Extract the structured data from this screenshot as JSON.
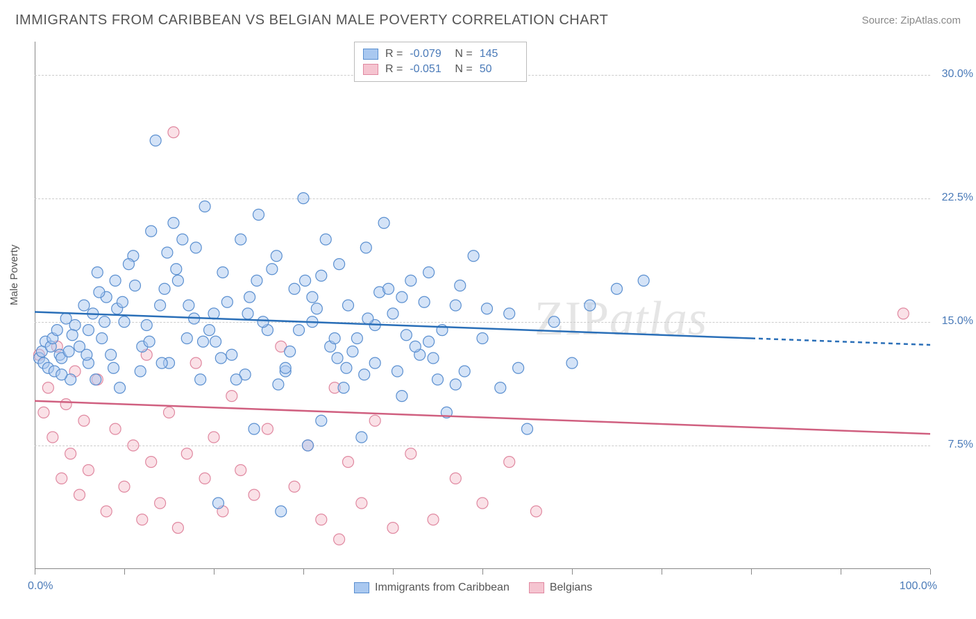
{
  "header": {
    "title": "IMMIGRANTS FROM CARIBBEAN VS BELGIAN MALE POVERTY CORRELATION CHART",
    "source": "Source: ZipAtlas.com"
  },
  "chart": {
    "type": "scatter",
    "ylabel": "Male Poverty",
    "watermark_1": "ZIP",
    "watermark_2": "atlas",
    "xlim": [
      0,
      100
    ],
    "ylim": [
      0,
      32
    ],
    "yticks": [
      {
        "value": 7.5,
        "label": "7.5%"
      },
      {
        "value": 15.0,
        "label": "15.0%"
      },
      {
        "value": 22.5,
        "label": "22.5%"
      },
      {
        "value": 30.0,
        "label": "30.0%"
      }
    ],
    "xticks": [
      0,
      10,
      20,
      30,
      40,
      50,
      60,
      70,
      80,
      90,
      100
    ],
    "xtick_labels": [
      {
        "value": 0,
        "label": "0.0%"
      },
      {
        "value": 100,
        "label": "100.0%"
      }
    ],
    "marker_radius": 8,
    "marker_opacity": 0.5,
    "series_a": {
      "name": "Immigrants from Caribbean",
      "color_fill": "#a9c8f0",
      "color_stroke": "#5a8fd0",
      "R": "-0.079",
      "N": "145",
      "trend": {
        "y_start": 15.6,
        "y_end": 13.6,
        "x_solid_end": 80,
        "color": "#2a6fb8",
        "width": 2.5
      },
      "points": [
        [
          0.5,
          12.8
        ],
        [
          0.8,
          13.2
        ],
        [
          1.0,
          12.5
        ],
        [
          1.2,
          13.8
        ],
        [
          1.5,
          12.2
        ],
        [
          1.8,
          13.5
        ],
        [
          2.0,
          14.0
        ],
        [
          2.2,
          12.0
        ],
        [
          2.5,
          14.5
        ],
        [
          2.8,
          13.0
        ],
        [
          3.0,
          12.8
        ],
        [
          3.5,
          15.2
        ],
        [
          4.0,
          11.5
        ],
        [
          4.5,
          14.8
        ],
        [
          5.0,
          13.5
        ],
        [
          5.5,
          16.0
        ],
        [
          6.0,
          12.5
        ],
        [
          6.5,
          15.5
        ],
        [
          7.0,
          18.0
        ],
        [
          7.5,
          14.0
        ],
        [
          8.0,
          16.5
        ],
        [
          8.5,
          13.0
        ],
        [
          9.0,
          17.5
        ],
        [
          9.5,
          11.0
        ],
        [
          10.0,
          15.0
        ],
        [
          11.0,
          19.0
        ],
        [
          12.0,
          13.5
        ],
        [
          13.0,
          20.5
        ],
        [
          13.5,
          26.0
        ],
        [
          14.0,
          16.0
        ],
        [
          15.0,
          12.5
        ],
        [
          15.5,
          21.0
        ],
        [
          16.0,
          17.5
        ],
        [
          17.0,
          14.0
        ],
        [
          18.0,
          19.5
        ],
        [
          18.5,
          11.5
        ],
        [
          19.0,
          22.0
        ],
        [
          20.0,
          15.5
        ],
        [
          20.5,
          4.0
        ],
        [
          21.0,
          18.0
        ],
        [
          22.0,
          13.0
        ],
        [
          23.0,
          20.0
        ],
        [
          24.0,
          16.5
        ],
        [
          24.5,
          8.5
        ],
        [
          25.0,
          21.5
        ],
        [
          26.0,
          14.5
        ],
        [
          27.0,
          19.0
        ],
        [
          27.5,
          3.5
        ],
        [
          28.0,
          12.0
        ],
        [
          29.0,
          17.0
        ],
        [
          30.0,
          22.5
        ],
        [
          30.5,
          7.5
        ],
        [
          31.0,
          15.0
        ],
        [
          32.0,
          9.0
        ],
        [
          32.5,
          20.0
        ],
        [
          33.0,
          13.5
        ],
        [
          34.0,
          18.5
        ],
        [
          34.5,
          11.0
        ],
        [
          35.0,
          16.0
        ],
        [
          36.0,
          14.0
        ],
        [
          36.5,
          8.0
        ],
        [
          37.0,
          19.5
        ],
        [
          38.0,
          12.5
        ],
        [
          39.0,
          21.0
        ],
        [
          40.0,
          15.5
        ],
        [
          41.0,
          10.5
        ],
        [
          42.0,
          17.5
        ],
        [
          43.0,
          13.0
        ],
        [
          44.0,
          18.0
        ],
        [
          45.0,
          11.5
        ],
        [
          45.5,
          14.5
        ],
        [
          46.0,
          9.5
        ],
        [
          47.0,
          16.0
        ],
        [
          48.0,
          12.0
        ],
        [
          49.0,
          19.0
        ],
        [
          50.0,
          14.0
        ],
        [
          52.0,
          11.0
        ],
        [
          53.0,
          15.5
        ],
        [
          55.0,
          8.5
        ],
        [
          58.0,
          15.0
        ],
        [
          60.0,
          12.5
        ],
        [
          62.0,
          16.0
        ],
        [
          65.0,
          17.0
        ],
        [
          68.0,
          17.5
        ],
        [
          3.0,
          11.8
        ],
        [
          4.2,
          14.2
        ],
        [
          5.8,
          13.0
        ],
        [
          7.2,
          16.8
        ],
        [
          8.8,
          12.2
        ],
        [
          10.5,
          18.5
        ],
        [
          12.5,
          14.8
        ],
        [
          14.5,
          17.0
        ],
        [
          16.5,
          20.0
        ],
        [
          18.8,
          13.8
        ],
        [
          21.5,
          16.2
        ],
        [
          23.5,
          11.8
        ],
        [
          26.5,
          18.2
        ],
        [
          29.5,
          14.5
        ],
        [
          32.0,
          17.8
        ],
        [
          35.5,
          13.2
        ],
        [
          38.5,
          16.8
        ],
        [
          41.5,
          14.2
        ],
        [
          44.5,
          12.8
        ],
        [
          47.5,
          17.2
        ],
        [
          6.0,
          14.5
        ],
        [
          9.2,
          15.8
        ],
        [
          11.8,
          12.0
        ],
        [
          14.8,
          19.2
        ],
        [
          17.8,
          15.2
        ],
        [
          20.8,
          12.8
        ],
        [
          24.8,
          17.5
        ],
        [
          28.5,
          13.2
        ],
        [
          31.5,
          15.8
        ],
        [
          34.8,
          12.2
        ],
        [
          38.0,
          14.8
        ],
        [
          41.0,
          16.5
        ],
        [
          44.0,
          13.8
        ],
        [
          47.0,
          11.2
        ],
        [
          50.5,
          15.8
        ],
        [
          54.0,
          12.2
        ],
        [
          3.8,
          13.2
        ],
        [
          6.8,
          11.5
        ],
        [
          9.8,
          16.2
        ],
        [
          12.8,
          13.8
        ],
        [
          15.8,
          18.2
        ],
        [
          19.5,
          14.5
        ],
        [
          22.5,
          11.5
        ],
        [
          25.5,
          15.0
        ],
        [
          28.0,
          12.2
        ],
        [
          31.0,
          16.5
        ],
        [
          33.5,
          14.0
        ],
        [
          36.8,
          11.8
        ],
        [
          39.5,
          17.0
        ],
        [
          42.5,
          13.5
        ],
        [
          7.8,
          15.0
        ],
        [
          11.2,
          17.2
        ],
        [
          14.2,
          12.5
        ],
        [
          17.2,
          16.0
        ],
        [
          20.2,
          13.8
        ],
        [
          23.8,
          15.5
        ],
        [
          27.2,
          11.2
        ],
        [
          30.2,
          17.5
        ],
        [
          33.8,
          12.8
        ],
        [
          37.2,
          15.2
        ],
        [
          40.5,
          12.0
        ],
        [
          43.5,
          16.2
        ]
      ]
    },
    "series_b": {
      "name": "Belgians",
      "color_fill": "#f5c4d0",
      "color_stroke": "#e088a0",
      "R": "-0.051",
      "N": "50",
      "trend": {
        "y_start": 10.2,
        "y_end": 8.2,
        "x_solid_end": 100,
        "color": "#d06080",
        "width": 2.5
      },
      "points": [
        [
          0.5,
          13.0
        ],
        [
          1.0,
          9.5
        ],
        [
          1.5,
          11.0
        ],
        [
          2.0,
          8.0
        ],
        [
          2.5,
          13.5
        ],
        [
          3.0,
          5.5
        ],
        [
          3.5,
          10.0
        ],
        [
          4.0,
          7.0
        ],
        [
          4.5,
          12.0
        ],
        [
          5.0,
          4.5
        ],
        [
          5.5,
          9.0
        ],
        [
          6.0,
          6.0
        ],
        [
          7.0,
          11.5
        ],
        [
          8.0,
          3.5
        ],
        [
          9.0,
          8.5
        ],
        [
          10.0,
          5.0
        ],
        [
          11.0,
          7.5
        ],
        [
          12.0,
          3.0
        ],
        [
          12.5,
          13.0
        ],
        [
          13.0,
          6.5
        ],
        [
          14.0,
          4.0
        ],
        [
          15.0,
          9.5
        ],
        [
          15.5,
          26.5
        ],
        [
          16.0,
          2.5
        ],
        [
          17.0,
          7.0
        ],
        [
          18.0,
          12.5
        ],
        [
          19.0,
          5.5
        ],
        [
          20.0,
          8.0
        ],
        [
          21.0,
          3.5
        ],
        [
          22.0,
          10.5
        ],
        [
          23.0,
          6.0
        ],
        [
          24.5,
          4.5
        ],
        [
          26.0,
          8.5
        ],
        [
          27.5,
          13.5
        ],
        [
          29.0,
          5.0
        ],
        [
          30.5,
          7.5
        ],
        [
          32.0,
          3.0
        ],
        [
          33.5,
          11.0
        ],
        [
          35.0,
          6.5
        ],
        [
          36.5,
          4.0
        ],
        [
          38.0,
          9.0
        ],
        [
          40.0,
          2.5
        ],
        [
          42.0,
          7.0
        ],
        [
          44.5,
          3.0
        ],
        [
          47.0,
          5.5
        ],
        [
          50.0,
          4.0
        ],
        [
          53.0,
          6.5
        ],
        [
          56.0,
          3.5
        ],
        [
          97.0,
          15.5
        ],
        [
          34.0,
          1.8
        ]
      ]
    }
  },
  "background_color": "#ffffff"
}
